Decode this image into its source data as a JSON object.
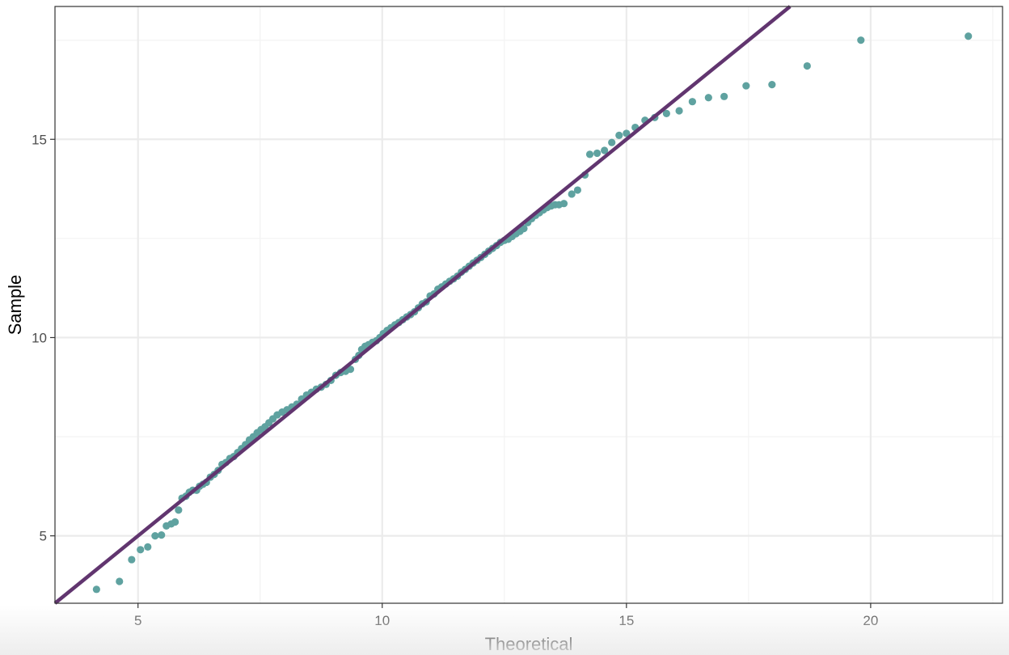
{
  "chart_data": {
    "type": "scatter",
    "title": "",
    "xlabel": "Theoretical",
    "ylabel": "Sample",
    "xlim": [
      3.3,
      22.7
    ],
    "ylim": [
      3.3,
      18.35
    ],
    "x_ticks": [
      5,
      10,
      15,
      20
    ],
    "y_ticks": [
      5,
      10,
      15
    ],
    "x_tick_labels": [
      "5",
      "10",
      "15",
      "20"
    ],
    "y_tick_labels": [
      "5",
      "10",
      "15"
    ],
    "grid": true,
    "legend": "none",
    "colors": {
      "points": "#5fa2a0",
      "reference_line": "#61356f",
      "grid_major": "#ebebeb",
      "grid_minor": "#f4f4f4",
      "panel_border": "#333333"
    },
    "reference_line": {
      "slope": 1,
      "intercept": 0
    },
    "points": [
      [
        4.15,
        3.65
      ],
      [
        4.62,
        3.85
      ],
      [
        4.87,
        4.4
      ],
      [
        5.05,
        4.65
      ],
      [
        5.2,
        4.72
      ],
      [
        5.35,
        5.0
      ],
      [
        5.48,
        5.02
      ],
      [
        5.58,
        5.25
      ],
      [
        5.68,
        5.3
      ],
      [
        5.76,
        5.35
      ],
      [
        5.83,
        5.65
      ],
      [
        5.9,
        5.95
      ],
      [
        5.98,
        6.0
      ],
      [
        6.05,
        6.1
      ],
      [
        6.12,
        6.15
      ],
      [
        6.2,
        6.15
      ],
      [
        6.26,
        6.25
      ],
      [
        6.33,
        6.3
      ],
      [
        6.4,
        6.35
      ],
      [
        6.48,
        6.48
      ],
      [
        6.56,
        6.55
      ],
      [
        6.64,
        6.65
      ],
      [
        6.72,
        6.8
      ],
      [
        6.8,
        6.85
      ],
      [
        6.88,
        6.95
      ],
      [
        6.96,
        7.0
      ],
      [
        7.04,
        7.1
      ],
      [
        7.12,
        7.2
      ],
      [
        7.2,
        7.3
      ],
      [
        7.28,
        7.42
      ],
      [
        7.36,
        7.5
      ],
      [
        7.44,
        7.6
      ],
      [
        7.52,
        7.68
      ],
      [
        7.6,
        7.75
      ],
      [
        7.68,
        7.85
      ],
      [
        7.76,
        7.95
      ],
      [
        7.85,
        8.05
      ],
      [
        7.95,
        8.12
      ],
      [
        8.05,
        8.18
      ],
      [
        8.15,
        8.25
      ],
      [
        8.25,
        8.32
      ],
      [
        8.35,
        8.45
      ],
      [
        8.45,
        8.55
      ],
      [
        8.55,
        8.62
      ],
      [
        8.65,
        8.7
      ],
      [
        8.75,
        8.75
      ],
      [
        8.85,
        8.82
      ],
      [
        8.95,
        8.92
      ],
      [
        9.05,
        9.05
      ],
      [
        9.15,
        9.12
      ],
      [
        9.25,
        9.15
      ],
      [
        9.35,
        9.2
      ],
      [
        9.45,
        9.45
      ],
      [
        9.52,
        9.55
      ],
      [
        9.58,
        9.7
      ],
      [
        9.65,
        9.78
      ],
      [
        9.72,
        9.82
      ],
      [
        9.8,
        9.88
      ],
      [
        9.88,
        9.92
      ],
      [
        9.95,
        10.0
      ],
      [
        10.02,
        10.1
      ],
      [
        10.1,
        10.18
      ],
      [
        10.18,
        10.25
      ],
      [
        10.26,
        10.32
      ],
      [
        10.34,
        10.38
      ],
      [
        10.42,
        10.45
      ],
      [
        10.5,
        10.52
      ],
      [
        10.58,
        10.58
      ],
      [
        10.66,
        10.65
      ],
      [
        10.74,
        10.75
      ],
      [
        10.82,
        10.85
      ],
      [
        10.9,
        10.9
      ],
      [
        10.98,
        11.05
      ],
      [
        11.06,
        11.1
      ],
      [
        11.14,
        11.22
      ],
      [
        11.22,
        11.28
      ],
      [
        11.3,
        11.35
      ],
      [
        11.38,
        11.42
      ],
      [
        11.46,
        11.48
      ],
      [
        11.54,
        11.55
      ],
      [
        11.62,
        11.65
      ],
      [
        11.7,
        11.72
      ],
      [
        11.78,
        11.8
      ],
      [
        11.86,
        11.88
      ],
      [
        11.94,
        11.95
      ],
      [
        12.02,
        12.02
      ],
      [
        12.1,
        12.1
      ],
      [
        12.18,
        12.18
      ],
      [
        12.26,
        12.25
      ],
      [
        12.34,
        12.32
      ],
      [
        12.42,
        12.4
      ],
      [
        12.5,
        12.45
      ],
      [
        12.58,
        12.48
      ],
      [
        12.66,
        12.55
      ],
      [
        12.74,
        12.62
      ],
      [
        12.82,
        12.68
      ],
      [
        12.9,
        12.75
      ],
      [
        12.98,
        12.9
      ],
      [
        13.06,
        13.0
      ],
      [
        13.14,
        13.08
      ],
      [
        13.22,
        13.15
      ],
      [
        13.3,
        13.22
      ],
      [
        13.38,
        13.28
      ],
      [
        13.46,
        13.32
      ],
      [
        13.54,
        13.35
      ],
      [
        13.62,
        13.35
      ],
      [
        13.72,
        13.38
      ],
      [
        13.88,
        13.62
      ],
      [
        14.0,
        13.72
      ],
      [
        14.15,
        14.1
      ],
      [
        14.25,
        14.62
      ],
      [
        14.4,
        14.65
      ],
      [
        14.55,
        14.72
      ],
      [
        14.7,
        14.92
      ],
      [
        14.85,
        15.1
      ],
      [
        15.0,
        15.15
      ],
      [
        15.18,
        15.3
      ],
      [
        15.38,
        15.48
      ],
      [
        15.58,
        15.55
      ],
      [
        15.82,
        15.65
      ],
      [
        16.08,
        15.72
      ],
      [
        16.35,
        15.95
      ],
      [
        16.68,
        16.05
      ],
      [
        17.0,
        16.08
      ],
      [
        17.45,
        16.35
      ],
      [
        17.98,
        16.38
      ],
      [
        18.7,
        16.85
      ],
      [
        19.8,
        17.5
      ],
      [
        22.0,
        17.6
      ]
    ]
  }
}
